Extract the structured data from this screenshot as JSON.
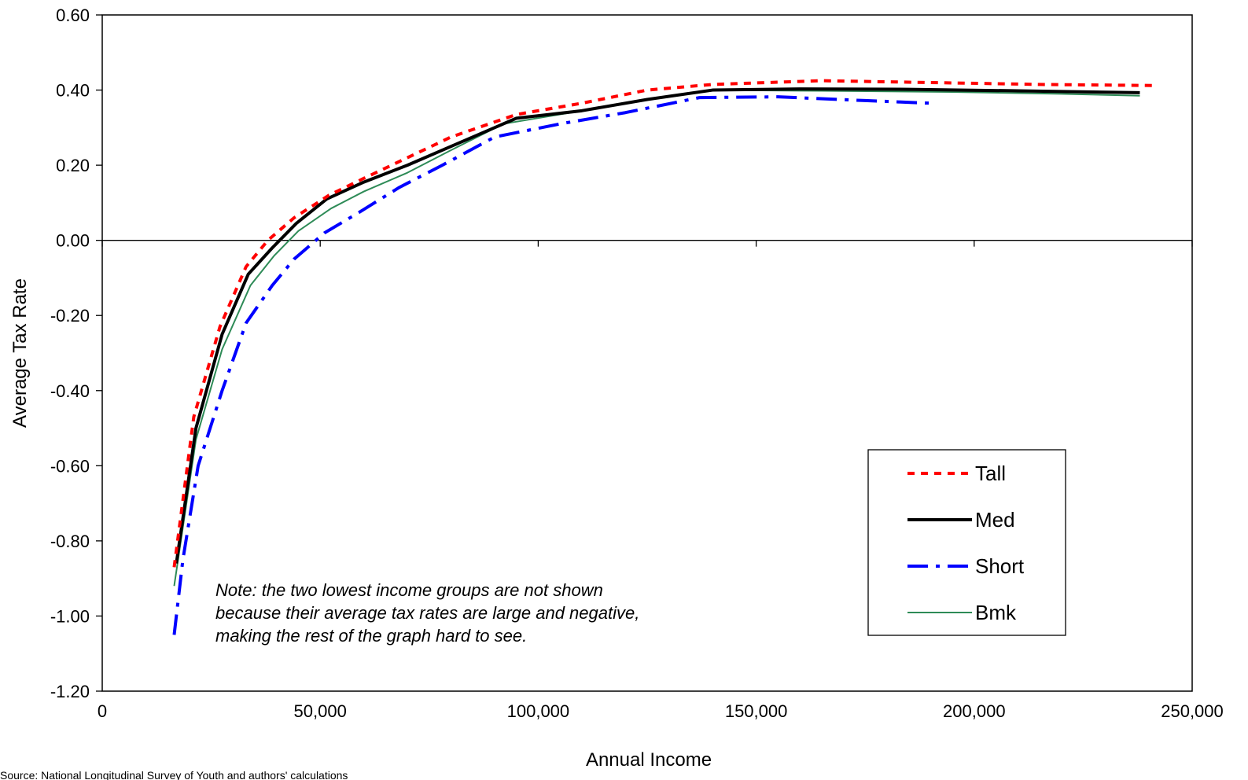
{
  "chart_data": {
    "type": "line",
    "xlabel": "Annual Income",
    "ylabel": "Average Tax Rate",
    "xlim": [
      0,
      250000
    ],
    "ylim": [
      -1.2,
      0.6
    ],
    "x_ticks": [
      0,
      50000,
      100000,
      150000,
      200000,
      250000
    ],
    "x_tick_labels": [
      "0",
      "50,000",
      "100,000",
      "150,000",
      "200,000",
      "250,000"
    ],
    "y_ticks": [
      0.6,
      0.4,
      0.2,
      0.0,
      -0.2,
      -0.4,
      -0.6,
      -0.8,
      -1.0,
      -1.2
    ],
    "y_tick_labels": [
      "0.60",
      "0.40",
      "0.20",
      "0.00",
      "-0.20",
      "-0.40",
      "-0.60",
      "-0.80",
      "-1.00",
      "-1.20"
    ],
    "grid": false,
    "legend_position": "bottom-right",
    "annotation": "Note: the two lowest income groups are not shown because their average tax rates are large and negative, making the rest of the graph hard to see.",
    "source": "Source: National Longitudinal Survey of Youth and authors' calculations",
    "series": [
      {
        "name": "Tall",
        "color": "#ff0000",
        "style": "dotted",
        "x": [
          16500,
          21000,
          27000,
          33000,
          38000,
          44000,
          52000,
          60000,
          70000,
          80000,
          90000,
          95000,
          110000,
          125000,
          140000,
          165000,
          190000,
          215000,
          242000
        ],
        "y": [
          -0.87,
          -0.47,
          -0.23,
          -0.07,
          0.0,
          0.06,
          0.12,
          0.165,
          0.22,
          0.275,
          0.315,
          0.335,
          0.365,
          0.4,
          0.415,
          0.425,
          0.42,
          0.415,
          0.412
        ]
      },
      {
        "name": "Med",
        "color": "#000000",
        "style": "solid",
        "x": [
          17000,
          21500,
          27500,
          33500,
          39000,
          44500,
          51500,
          60000,
          70000,
          80000,
          90000,
          95000,
          110000,
          125000,
          140000,
          160000,
          185000,
          210000,
          238000
        ],
        "y": [
          -0.86,
          -0.5,
          -0.25,
          -0.09,
          -0.02,
          0.045,
          0.11,
          0.155,
          0.2,
          0.25,
          0.3,
          0.325,
          0.345,
          0.375,
          0.4,
          0.403,
          0.402,
          0.398,
          0.393
        ]
      },
      {
        "name": "Short",
        "color": "#0000ff",
        "style": "dashdot",
        "x": [
          16500,
          18500,
          22000,
          27500,
          33000,
          39000,
          44000,
          51000,
          59000,
          68000,
          78000,
          90000,
          105000,
          120000,
          137000,
          155000,
          175000,
          190000
        ],
        "y": [
          -1.05,
          -0.85,
          -0.6,
          -0.4,
          -0.22,
          -0.12,
          -0.05,
          0.02,
          0.075,
          0.14,
          0.2,
          0.275,
          0.31,
          0.34,
          0.38,
          0.382,
          0.372,
          0.365
        ]
      },
      {
        "name": "Bmk",
        "color": "#2e8b57",
        "style": "thin",
        "x": [
          16500,
          21500,
          27500,
          34000,
          39500,
          45000,
          52500,
          60000,
          70000,
          80000,
          92000,
          110000,
          125000,
          140000,
          165000,
          195000,
          220000,
          238000
        ],
        "y": [
          -0.92,
          -0.53,
          -0.29,
          -0.12,
          -0.04,
          0.025,
          0.085,
          0.13,
          0.18,
          0.24,
          0.31,
          0.345,
          0.375,
          0.4,
          0.398,
          0.395,
          0.39,
          0.385
        ]
      }
    ]
  }
}
